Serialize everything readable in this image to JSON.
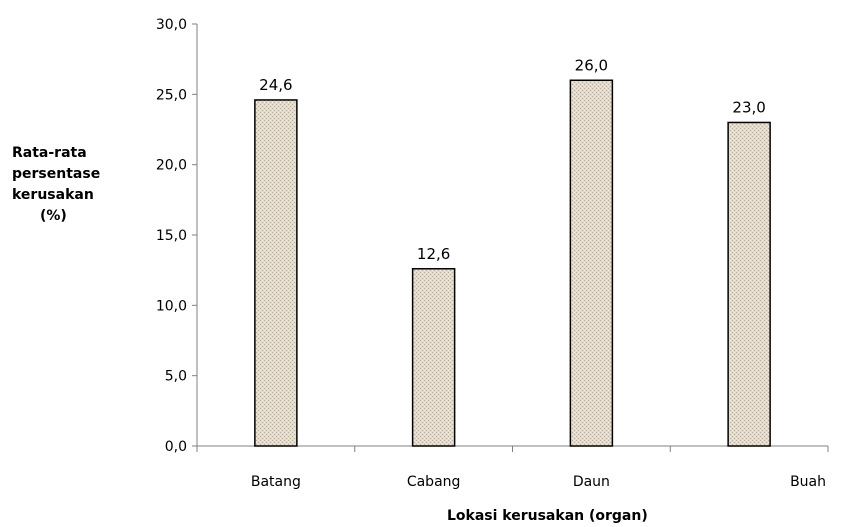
{
  "chart_data": {
    "type": "bar",
    "categories": [
      "Batang",
      "Cabang",
      "Daun",
      "Buah"
    ],
    "values": [
      24.6,
      12.6,
      26.0,
      23.0
    ],
    "data_labels": [
      "24,6",
      "12,6",
      "26,0",
      "23,0"
    ],
    "ylabel_lines": [
      "Rata-rata",
      "persentase",
      "kerusakan",
      "(%)"
    ],
    "xlabel": "Lokasi kerusakan (organ)",
    "ylim": [
      0,
      30
    ],
    "yticks": [
      0,
      5,
      10,
      15,
      20,
      25,
      30
    ],
    "ytick_labels": [
      "0,0",
      "5,0",
      "10,0",
      "15,0",
      "20,0",
      "25,0",
      "30,0"
    ],
    "grid": false,
    "legend": "none",
    "bar_fill_color": "#e3dbc9",
    "bar_edge_color": "#000000",
    "axis_color": "#808080"
  }
}
